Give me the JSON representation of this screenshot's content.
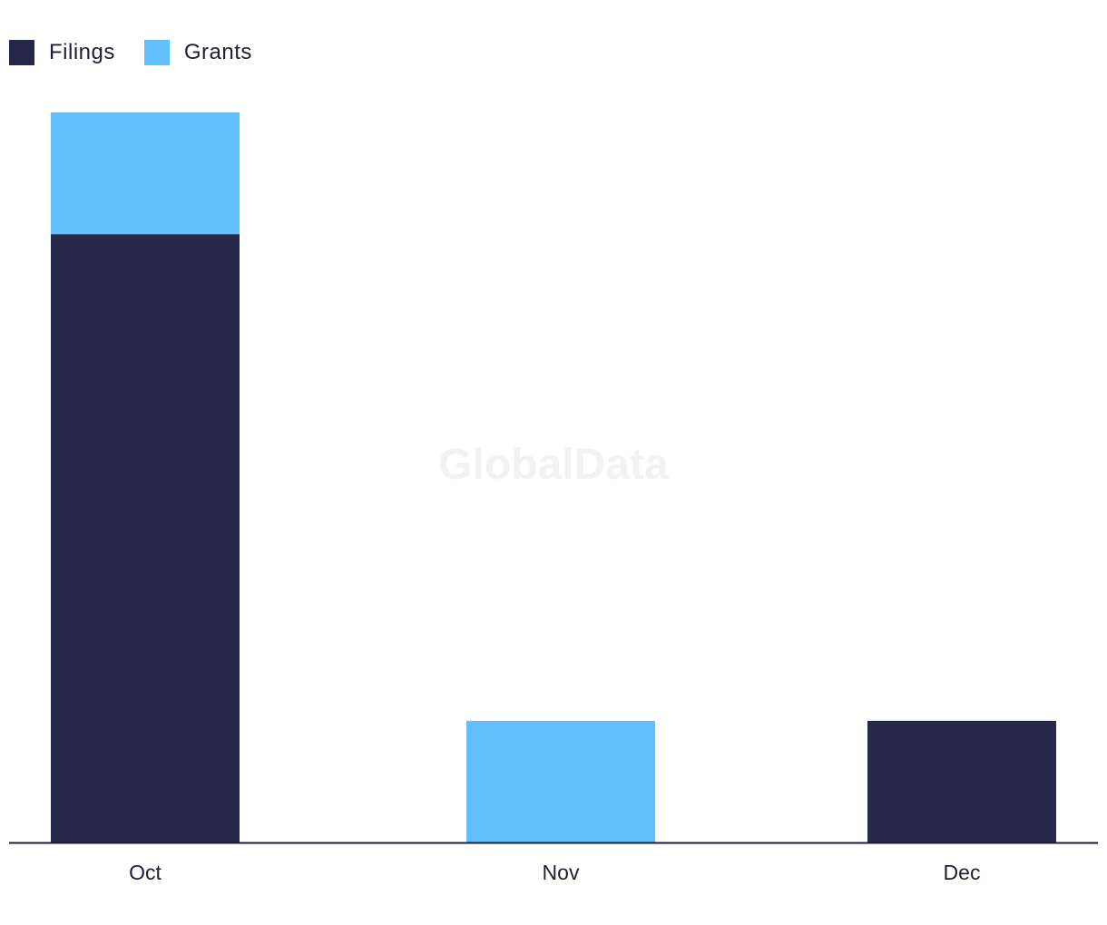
{
  "watermark": "GlobalData",
  "chart_data": {
    "type": "bar",
    "stacked": true,
    "categories": [
      "Oct",
      "Nov",
      "Dec"
    ],
    "series": [
      {
        "name": "Filings",
        "values": [
          5,
          0,
          1
        ],
        "color": "#26284a"
      },
      {
        "name": "Grants",
        "values": [
          1,
          1,
          0
        ],
        "color": "#62c1fa"
      }
    ],
    "ylim": [
      0,
      6
    ],
    "legend": "top-left",
    "grid": false
  }
}
